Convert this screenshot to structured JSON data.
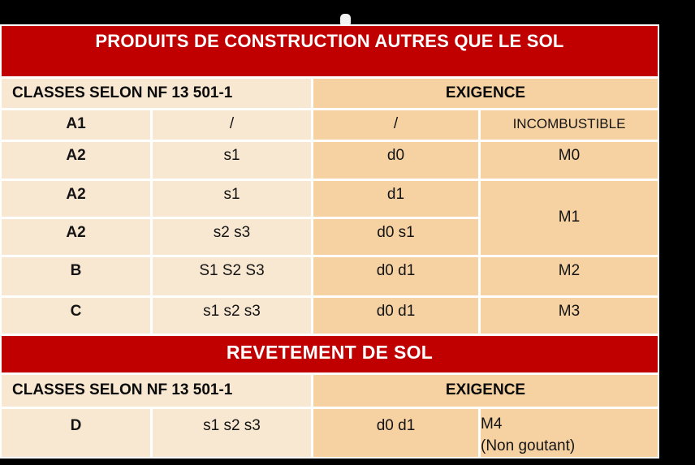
{
  "banner_top": {
    "label": "PRODUITS DE CONSTRUCTION AUTRES QUE LE SOL"
  },
  "banner_middle": {
    "label": "REVETEMENT DE SOL"
  },
  "column_headers": {
    "classes": "CLASSES SELON NF 13 501-1",
    "exigence": "EXIGENCE"
  },
  "table1": {
    "rows": [
      {
        "c1": "A1",
        "c2": "/",
        "c3": "/",
        "c4": "INCOMBUSTIBLE"
      },
      {
        "c1": "A2",
        "c2": "s1",
        "c3": "d0",
        "c4": "M0"
      },
      {
        "c1": "A2",
        "c2": "s1",
        "c3": "d1"
      },
      {
        "c1": "A2",
        "c2": "s2 s3",
        "c3": "d0 s1"
      },
      {
        "c1": "B",
        "c2": "S1 S2 S3",
        "c3": "d0 d1",
        "c4": "M2"
      },
      {
        "c1": "C",
        "c2": "s1 s2 s3",
        "c3": "d0 d1",
        "c4": "M3"
      }
    ],
    "merged_cell": "M1"
  },
  "table2": {
    "rows": [
      {
        "c1": "D",
        "c2": "s1 s2 s3",
        "c3": "d0 d1",
        "c4_line1": "M4",
        "c4_line2": "(Non goutant)"
      }
    ]
  },
  "colors": {
    "banner_red": "#C00000",
    "left_columns_bg": "#F8E7D1",
    "right_columns_bg": "#F6D2A2",
    "gridline": "#FFFFFF",
    "banner_text": "#FFFFFF",
    "cell_text": "#141414",
    "page_background": "#000000"
  }
}
